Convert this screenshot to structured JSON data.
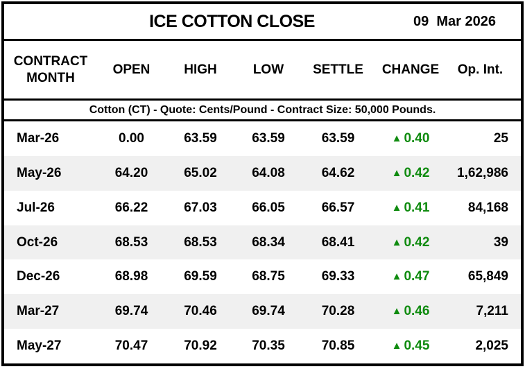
{
  "title_bar": {
    "title": "ICE COTTON CLOSE",
    "date": "09  Mar 2026"
  },
  "table": {
    "header": {
      "contract_month": "CONTRACT MONTH",
      "open": "OPEN",
      "high": "HIGH",
      "low": "LOW",
      "settle": "SETTLE",
      "change": "CHANGE",
      "open_interest": "Op. Int."
    },
    "subtitle": "Cotton (CT) - Quote: Cents/Pound - Contract Size: 50,000 Pounds.",
    "rows": [
      {
        "month": "Mar-26",
        "open": "0.00",
        "high": "63.59",
        "low": "63.59",
        "settle": "63.59",
        "change": "0.40",
        "change_direction": "up",
        "open_interest": "25"
      },
      {
        "month": "May-26",
        "open": "64.20",
        "high": "65.02",
        "low": "64.08",
        "settle": "64.62",
        "change": "0.42",
        "change_direction": "up",
        "open_interest": "1,62,986"
      },
      {
        "month": "Jul-26",
        "open": "66.22",
        "high": "67.03",
        "low": "66.05",
        "settle": "66.57",
        "change": "0.41",
        "change_direction": "up",
        "open_interest": "84,168"
      },
      {
        "month": "Oct-26",
        "open": "68.53",
        "high": "68.53",
        "low": "68.34",
        "settle": "68.41",
        "change": "0.42",
        "change_direction": "up",
        "open_interest": "39"
      },
      {
        "month": "Dec-26",
        "open": "68.98",
        "high": "69.59",
        "low": "68.75",
        "settle": "69.33",
        "change": "0.47",
        "change_direction": "up",
        "open_interest": "65,849"
      },
      {
        "month": "Mar-27",
        "open": "69.74",
        "high": "70.46",
        "low": "69.74",
        "settle": "70.28",
        "change": "0.46",
        "change_direction": "up",
        "open_interest": "7,211"
      },
      {
        "month": "May-27",
        "open": "70.47",
        "high": "70.92",
        "low": "70.35",
        "settle": "70.85",
        "change": "0.45",
        "change_direction": "up",
        "open_interest": "2,025"
      }
    ]
  },
  "icons": {
    "up_triangle": "▲"
  },
  "colors": {
    "positive_change": "#0f8b0f",
    "row_alt": "#f0f0f0",
    "border": "#000000",
    "text": "#000000"
  },
  "chart_data": {
    "type": "table",
    "title": "ICE COTTON CLOSE",
    "date": "09 Mar 2026",
    "subtitle": "Cotton (CT) - Quote: Cents/Pound - Contract Size: 50,000 Pounds.",
    "columns": [
      "CONTRACT MONTH",
      "OPEN",
      "HIGH",
      "LOW",
      "SETTLE",
      "CHANGE",
      "Op. Int."
    ],
    "rows": [
      [
        "Mar-26",
        0.0,
        63.59,
        63.59,
        63.59,
        "+0.40",
        "25"
      ],
      [
        "May-26",
        64.2,
        65.02,
        64.08,
        64.62,
        "+0.42",
        "1,62,986"
      ],
      [
        "Jul-26",
        66.22,
        67.03,
        66.05,
        66.57,
        "+0.41",
        "84,168"
      ],
      [
        "Oct-26",
        68.53,
        68.53,
        68.34,
        68.41,
        "+0.42",
        "39"
      ],
      [
        "Dec-26",
        68.98,
        69.59,
        68.75,
        69.33,
        "+0.47",
        "65,849"
      ],
      [
        "Mar-27",
        69.74,
        70.46,
        69.74,
        70.28,
        "+0.46",
        "7,211"
      ],
      [
        "May-27",
        70.47,
        70.92,
        70.35,
        70.85,
        "+0.45",
        "2,025"
      ]
    ]
  }
}
